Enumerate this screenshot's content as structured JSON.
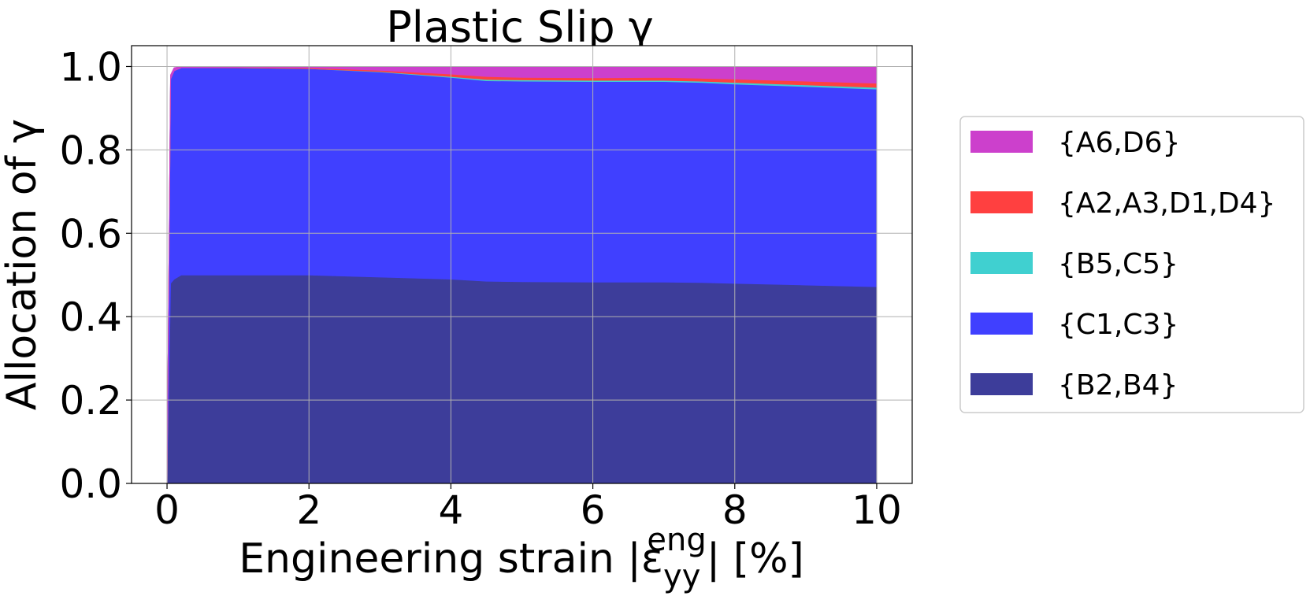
{
  "chart_data": {
    "type": "area",
    "title": "Plastic Slip γ",
    "xlabel": "Engineering strain |ε_yy^eng| [%]",
    "xlabel_parts": {
      "prefix": "Engineering strain |ε",
      "sub": "yy",
      "sup": "eng",
      "suffix": "| [%]"
    },
    "ylabel": "Allocation of γ",
    "xlim": [
      -0.5,
      10.5
    ],
    "ylim": [
      0.0,
      1.05
    ],
    "xticks": [
      0,
      2,
      4,
      6,
      8,
      10
    ],
    "yticks": [
      0.0,
      0.2,
      0.4,
      0.6,
      0.8,
      1.0
    ],
    "xtick_labels": [
      "0",
      "2",
      "4",
      "6",
      "8",
      "10"
    ],
    "ytick_labels": [
      "0.0",
      "0.2",
      "0.4",
      "0.6",
      "0.8",
      "1.0"
    ],
    "grid": true,
    "stacked": true,
    "legend_position": "right",
    "x": [
      0,
      0.05,
      0.1,
      0.2,
      1,
      2,
      3,
      4,
      4.5,
      5,
      6,
      7,
      7.5,
      8,
      9,
      10
    ],
    "series": [
      {
        "name": "{B2,B4}",
        "color": "#3d3d9a",
        "values": [
          0,
          0.48,
          0.49,
          0.5,
          0.5,
          0.5,
          0.495,
          0.49,
          0.485,
          0.484,
          0.483,
          0.483,
          0.482,
          0.48,
          0.476,
          0.472
        ]
      },
      {
        "name": "{C1,C3}",
        "color": "#4040ff",
        "values": [
          0,
          0.49,
          0.5,
          0.497,
          0.497,
          0.495,
          0.492,
          0.484,
          0.481,
          0.481,
          0.481,
          0.481,
          0.48,
          0.478,
          0.476,
          0.474
        ]
      },
      {
        "name": "{B5,C5}",
        "color": "#40d0d0",
        "values": [
          0,
          0,
          0,
          0,
          0,
          0,
          0.001,
          0.002,
          0.003,
          0.003,
          0.003,
          0.003,
          0.003,
          0.004,
          0.004,
          0.004
        ]
      },
      {
        "name": "{A2,A3,D1,D4}",
        "color": "#ff4040",
        "values": [
          0,
          0,
          0,
          0,
          0.001,
          0.002,
          0.003,
          0.006,
          0.007,
          0.006,
          0.006,
          0.007,
          0.007,
          0.008,
          0.009,
          0.01
        ]
      },
      {
        "name": "{A6,D6}",
        "color": "#cc40cc",
        "values": [
          0,
          0.01,
          0.007,
          0.003,
          0.002,
          0.003,
          0.009,
          0.018,
          0.024,
          0.026,
          0.027,
          0.026,
          0.028,
          0.03,
          0.035,
          0.04
        ]
      }
    ],
    "legend_order": [
      "{A6,D6}",
      "{A2,A3,D1,D4}",
      "{B5,C5}",
      "{C1,C3}",
      "{B2,B4}"
    ]
  }
}
